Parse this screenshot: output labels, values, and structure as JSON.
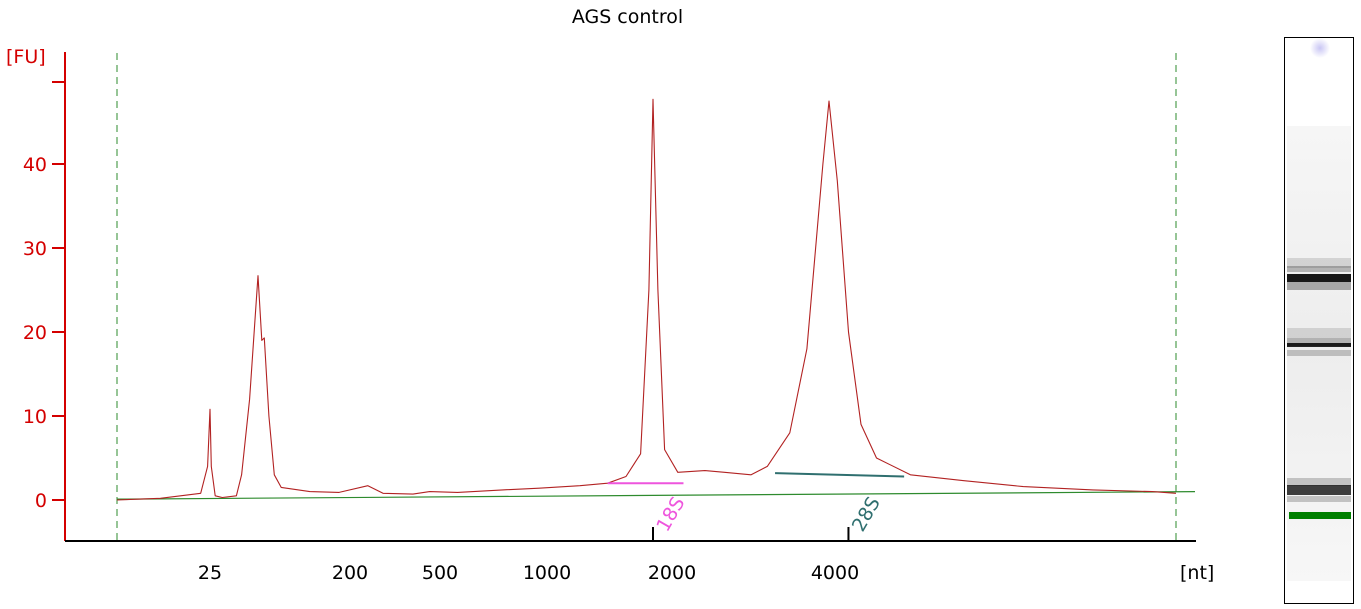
{
  "chart_data": {
    "type": "line",
    "title": "AGS control",
    "ylabel": "[FU]",
    "xlabel": "[nt]",
    "ylim": [
      -5,
      50
    ],
    "y_ticks": [
      0,
      10,
      20,
      30,
      40
    ],
    "x_tick_labels": [
      "25",
      "200",
      "500",
      "1000",
      "2000",
      "4000"
    ],
    "grid": false,
    "series": [
      {
        "color": "#b22222",
        "points": [
          [
            13.5,
            0.0
          ],
          [
            18.0,
            0.2
          ],
          [
            23.5,
            0.8
          ],
          [
            24.6,
            4.0
          ],
          [
            25.0,
            10.8
          ],
          [
            25.5,
            4.0
          ],
          [
            27.0,
            0.5
          ],
          [
            30.0,
            0.3
          ],
          [
            37.0,
            0.5
          ],
          [
            40.0,
            3.0
          ],
          [
            45.0,
            12.0
          ],
          [
            49.0,
            22.0
          ],
          [
            51.0,
            26.7
          ],
          [
            54.0,
            19.0
          ],
          [
            56.0,
            19.3
          ],
          [
            60.0,
            10.0
          ],
          [
            65.0,
            3.0
          ],
          [
            72.0,
            1.5
          ],
          [
            110.0,
            1.0
          ],
          [
            170.0,
            0.9
          ],
          [
            240.0,
            1.7
          ],
          [
            280.0,
            0.8
          ],
          [
            380.0,
            0.7
          ],
          [
            450.0,
            1.0
          ],
          [
            560.0,
            0.9
          ],
          [
            750.0,
            1.2
          ],
          [
            950.0,
            1.4
          ],
          [
            1200.0,
            1.7
          ],
          [
            1400.0,
            2.0
          ],
          [
            1550.0,
            2.8
          ],
          [
            1680.0,
            5.5
          ],
          [
            1760.0,
            25.0
          ],
          [
            1800.0,
            47.7
          ],
          [
            1850.0,
            25.0
          ],
          [
            1920.0,
            6.0
          ],
          [
            2050.0,
            3.3
          ],
          [
            2300.0,
            3.5
          ],
          [
            2500.0,
            3.3
          ],
          [
            2800.0,
            3.0
          ],
          [
            3000.0,
            4.0
          ],
          [
            3300.0,
            8.0
          ],
          [
            3550.0,
            18.0
          ],
          [
            3800.0,
            40.0
          ],
          [
            3900.0,
            47.5
          ],
          [
            4050.0,
            38.0
          ],
          [
            4300.0,
            20.0
          ],
          [
            4600.0,
            9.0
          ],
          [
            5000.0,
            5.0
          ],
          [
            6000.0,
            3.0
          ],
          [
            8000.0,
            2.3
          ],
          [
            11000.0,
            1.6
          ],
          [
            16000.0,
            1.2
          ],
          [
            22000.0,
            1.0
          ],
          [
            25000.0,
            0.8
          ]
        ]
      }
    ],
    "regions": [
      {
        "label": "18S",
        "color": "#ee55dd",
        "start": 1400,
        "end": 2100,
        "level": 2.0,
        "marker": 1800
      },
      {
        "label": "28S",
        "color": "#2f6f6f",
        "start": 3100,
        "end": 5800,
        "level_start": 3.2,
        "level_end": 2.8,
        "marker": 4300
      }
    ]
  },
  "colors": {
    "axis_y": "#d40000",
    "trace": "#b22222",
    "baseline": "#2e8b2e",
    "marker_lines": "#2e8b2e",
    "gel_marker": "#008000"
  }
}
